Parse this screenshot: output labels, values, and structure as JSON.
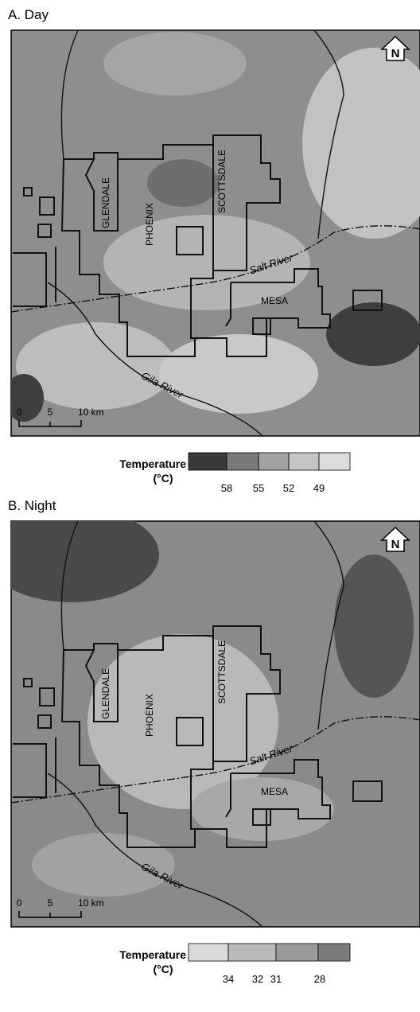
{
  "panels": [
    {
      "label": "A. Day",
      "north": "N",
      "cities": [
        "GLENDALE",
        "PHOENIX",
        "SCOTTSDALE",
        "MESA"
      ],
      "rivers": [
        "Salt River",
        "Gila River"
      ],
      "scale": [
        "0",
        "5",
        "10 km"
      ],
      "legend": {
        "title": "Temperature",
        "unit": "(°C)",
        "ticks": [
          58,
          55,
          52,
          49
        ]
      }
    },
    {
      "label": "B. Night",
      "north": "N",
      "cities": [
        "GLENDALE",
        "PHOENIX",
        "SCOTTSDALE",
        "MESA"
      ],
      "rivers": [
        "Salt River",
        "Gila River"
      ],
      "scale": [
        "0",
        "5",
        "10 km"
      ],
      "legend": {
        "title": "Temperature",
        "unit": "(°C)",
        "ticks": [
          34,
          32,
          31,
          28
        ]
      }
    }
  ]
}
